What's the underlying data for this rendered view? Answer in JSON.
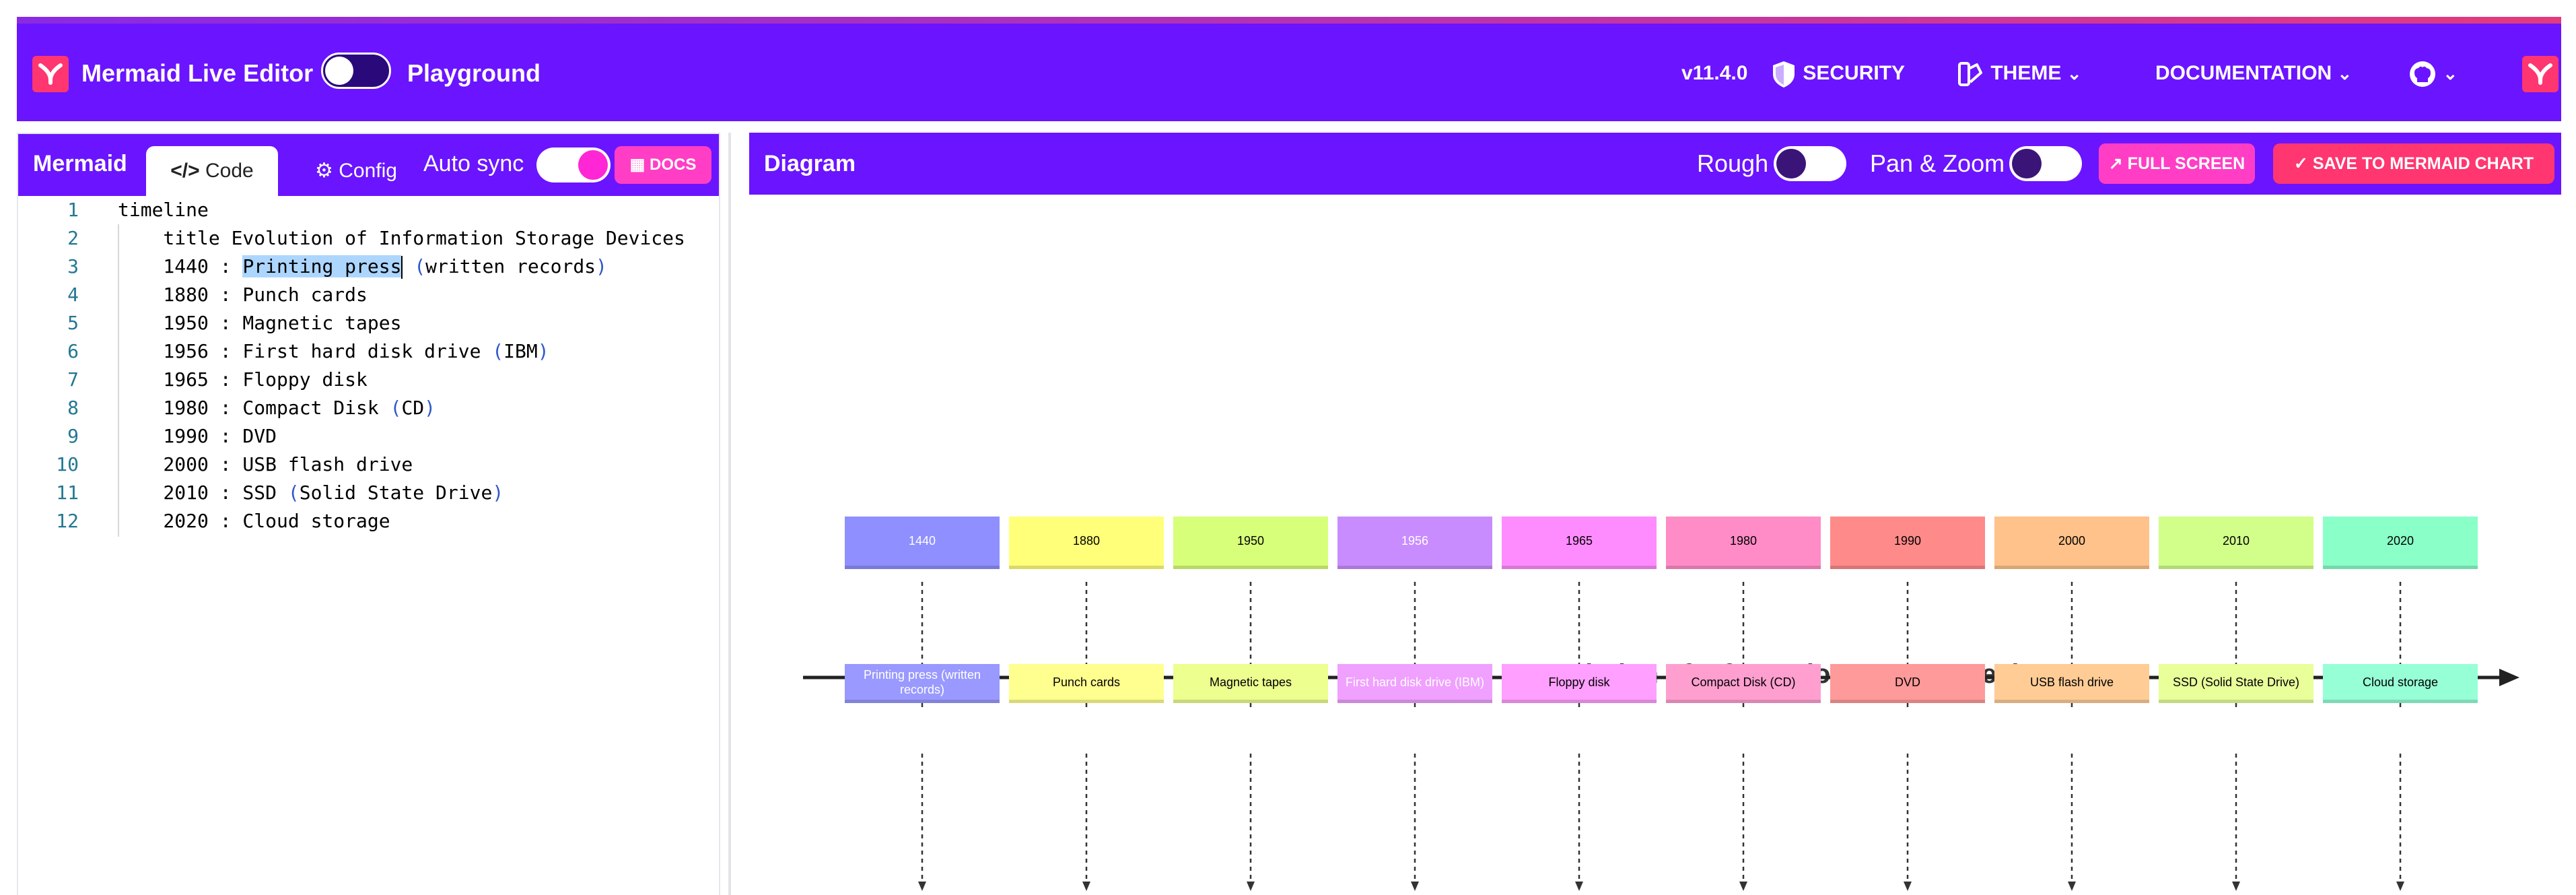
{
  "header": {
    "app_title": "Mermaid Live Editor",
    "playground_label": "Playground",
    "version": "v11.4.0",
    "security_label": "SECURITY",
    "theme_label": "THEME",
    "documentation_label": "DOCUMENTATION"
  },
  "editor_panel": {
    "title": "Mermaid",
    "tab_code": "Code",
    "tab_config": "Config",
    "auto_sync_label": "Auto sync",
    "docs_label": "DOCS",
    "lines": [
      "timeline",
      "    title Evolution of Information Storage Devices",
      "    1440 : Printing press (written records)",
      "    1880 : Punch cards",
      "    1950 : Magnetic tapes",
      "    1956 : First hard disk drive (IBM)",
      "    1965 : Floppy disk",
      "    1980 : Compact Disk (CD)",
      "    1990 : DVD",
      "    2000 : USB flash drive",
      "    2010 : SSD (Solid State Drive)",
      "    2020 : Cloud storage"
    ]
  },
  "diagram_panel": {
    "title": "Diagram",
    "rough_label": "Rough",
    "pan_zoom_label": "Pan & Zoom",
    "full_screen_label": "FULL SCREEN",
    "save_label": "SAVE TO MERMAID CHART"
  },
  "timeline": {
    "title": "Evolution of Information Storage Devices",
    "periods": [
      {
        "year": "1440",
        "event": "Printing press (written records)",
        "color": "#8f8fff",
        "event_color": "#9999ff",
        "text_color": "#ffffff"
      },
      {
        "year": "1880",
        "event": "Punch cards",
        "color": "#ffff7a",
        "event_color": "#ffff8f",
        "text_color": "#000000"
      },
      {
        "year": "1950",
        "event": "Magnetic tapes",
        "color": "#d8ff7a",
        "event_color": "#ecff8f",
        "text_color": "#000000"
      },
      {
        "year": "1956",
        "event": "First hard disk drive (IBM)",
        "color": "#c98cff",
        "event_color": "#f0a0ff",
        "text_color": "#ffffff"
      },
      {
        "year": "1965",
        "event": "Floppy disk",
        "color": "#ff8cff",
        "event_color": "#ff9fff",
        "text_color": "#000000"
      },
      {
        "year": "1980",
        "event": "Compact Disk (CD)",
        "color": "#ff8cc6",
        "event_color": "#ff9fd0",
        "text_color": "#000000"
      },
      {
        "year": "1990",
        "event": "DVD",
        "color": "#ff8a8a",
        "event_color": "#ff9a9a",
        "text_color": "#000000"
      },
      {
        "year": "2000",
        "event": "USB flash drive",
        "color": "#ffc28a",
        "event_color": "#ffcc96",
        "text_color": "#000000"
      },
      {
        "year": "2010",
        "event": "SSD (Solid State Drive)",
        "color": "#d2ff8a",
        "event_color": "#e8ff9a",
        "text_color": "#000000"
      },
      {
        "year": "2020",
        "event": "Cloud storage",
        "color": "#8affc8",
        "event_color": "#96ffd6",
        "text_color": "#000000"
      }
    ]
  }
}
